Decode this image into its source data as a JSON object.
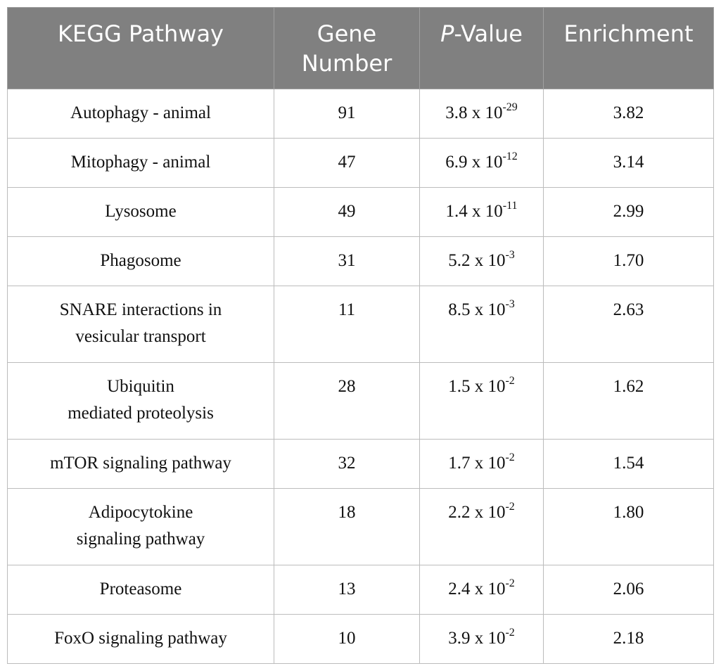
{
  "chart_data": {
    "type": "table",
    "columns": [
      "KEGG Pathway",
      "Gene Number",
      "P-Value",
      "Enrichment"
    ],
    "header": {
      "pathway": "KEGG Pathway",
      "gene_line1": "Gene",
      "gene_line2": "Number",
      "pvalue_italic": "P",
      "pvalue_rest": "-Value",
      "enrichment": "Enrichment"
    },
    "rows": [
      {
        "pathway": [
          "Autophagy - animal"
        ],
        "genes": "91",
        "p_mantissa": "3.8",
        "p_exp": "-29",
        "enrichment": "3.82"
      },
      {
        "pathway": [
          "Mitophagy - animal"
        ],
        "genes": "47",
        "p_mantissa": "6.9",
        "p_exp": "-12",
        "enrichment": "3.14"
      },
      {
        "pathway": [
          "Lysosome"
        ],
        "genes": "49",
        "p_mantissa": "1.4",
        "p_exp": "-11",
        "enrichment": "2.99"
      },
      {
        "pathway": [
          "Phagosome"
        ],
        "genes": "31",
        "p_mantissa": "5.2",
        "p_exp": "-3",
        "enrichment": "1.70"
      },
      {
        "pathway": [
          "SNARE interactions in",
          "vesicular transport"
        ],
        "genes": "11",
        "p_mantissa": "8.5",
        "p_exp": "-3",
        "enrichment": "2.63"
      },
      {
        "pathway": [
          "Ubiquitin",
          "mediated proteolysis"
        ],
        "genes": "28",
        "p_mantissa": "1.5",
        "p_exp": "-2",
        "enrichment": "1.62"
      },
      {
        "pathway": [
          "mTOR signaling pathway"
        ],
        "genes": "32",
        "p_mantissa": "1.7",
        "p_exp": "-2",
        "enrichment": "1.54"
      },
      {
        "pathway": [
          "Adipocytokine",
          "signaling pathway"
        ],
        "genes": "18",
        "p_mantissa": "2.2",
        "p_exp": "-2",
        "enrichment": "1.80"
      },
      {
        "pathway": [
          "Proteasome"
        ],
        "genes": "13",
        "p_mantissa": "2.4",
        "p_exp": "-2",
        "enrichment": "2.06"
      },
      {
        "pathway": [
          "FoxO signaling pathway"
        ],
        "genes": "10",
        "p_mantissa": "3.9",
        "p_exp": "-2",
        "enrichment": "2.18"
      }
    ],
    "p_times": "x 10"
  }
}
